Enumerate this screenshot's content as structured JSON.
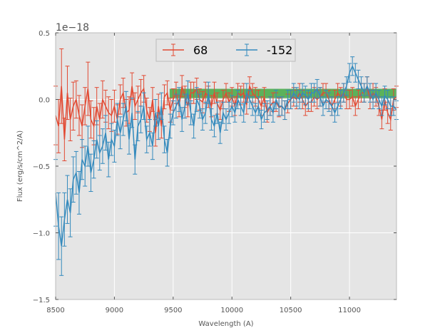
{
  "chart_data": {
    "type": "line",
    "title": "",
    "xlabel": "Wavelength (A)",
    "ylabel": "Flux (erg/s/cm^2/A)",
    "y_offset_label": "1e−18",
    "y_scale_factor": 1e-18,
    "xlim": [
      8500,
      11400
    ],
    "ylim": [
      -1.5,
      0.5
    ],
    "x_ticks": [
      8500,
      9000,
      9500,
      10000,
      10500,
      11000
    ],
    "x_tick_labels": [
      "8500",
      "9000",
      "9500",
      "10000",
      "10500",
      "11000"
    ],
    "y_ticks": [
      -1.5,
      -1.0,
      -0.5,
      0.0,
      0.5
    ],
    "y_tick_labels": [
      "−1.5",
      "−1.0",
      "−0.5",
      "0.0",
      "0.5"
    ],
    "grid": true,
    "legend_position": "top-center",
    "band": {
      "x_start": 9470,
      "x_end": 11400,
      "y_low": 0.01,
      "y_high": 0.08,
      "color": "#2ca02c"
    },
    "series": [
      {
        "name": "68",
        "color": "#e24a33",
        "x": [
          8500,
          8525,
          8550,
          8575,
          8600,
          8625,
          8650,
          8675,
          8700,
          8725,
          8750,
          8775,
          8800,
          8825,
          8850,
          8875,
          8900,
          8925,
          8950,
          8975,
          9000,
          9025,
          9050,
          9075,
          9100,
          9125,
          9150,
          9175,
          9200,
          9225,
          9250,
          9275,
          9300,
          9325,
          9350,
          9375,
          9400,
          9425,
          9450,
          9475,
          9500,
          9525,
          9550,
          9575,
          9600,
          9625,
          9650,
          9675,
          9700,
          9725,
          9750,
          9775,
          9800,
          9825,
          9850,
          9875,
          9900,
          9925,
          9950,
          9975,
          10000,
          10025,
          10050,
          10075,
          10100,
          10125,
          10150,
          10175,
          10200,
          10225,
          10250,
          10275,
          10300,
          10325,
          10350,
          10375,
          10400,
          10425,
          10450,
          10475,
          10500,
          10525,
          10550,
          10575,
          10600,
          10625,
          10650,
          10675,
          10700,
          10725,
          10750,
          10775,
          10800,
          10825,
          10850,
          10875,
          10900,
          10925,
          10950,
          10975,
          11000,
          11025,
          11050,
          11075,
          11100,
          11125,
          11150,
          11175,
          11200,
          11225,
          11250,
          11275,
          11300,
          11325,
          11350,
          11375,
          11400
        ],
        "y": [
          -0.12,
          -0.2,
          0.1,
          -0.3,
          0.05,
          -0.15,
          -0.05,
          0.0,
          -0.12,
          -0.2,
          -0.05,
          0.08,
          -0.15,
          -0.2,
          -0.05,
          -0.15,
          0.0,
          -0.05,
          -0.1,
          -0.12,
          -0.05,
          -0.15,
          0.0,
          0.05,
          -0.1,
          -0.08,
          0.1,
          -0.05,
          0.0,
          0.05,
          0.08,
          -0.08,
          -0.15,
          0.0,
          -0.25,
          -0.05,
          -0.2,
          0.02,
          0.05,
          -0.08,
          0.0,
          0.05,
          -0.05,
          0.1,
          0.02,
          -0.05,
          0.05,
          0.05,
          0.08,
          0.0,
          -0.02,
          0.05,
          0.02,
          -0.05,
          0.05,
          -0.03,
          -0.08,
          0.0,
          0.05,
          -0.02,
          0.02,
          -0.05,
          0.05,
          0.03,
          0.05,
          -0.04,
          0.1,
          0.05,
          0.02,
          0.0,
          -0.05,
          0.02,
          -0.1,
          -0.05,
          -0.02,
          -0.02,
          -0.06,
          -0.05,
          -0.08,
          -0.03,
          0.0,
          0.02,
          0.0,
          0.05,
          0.0,
          -0.05,
          -0.02,
          -0.02,
          0.02,
          0.0,
          0.02,
          0.05,
          0.05,
          0.0,
          -0.05,
          0.0,
          0.05,
          0.02,
          0.05,
          0.0,
          0.0,
          0.02,
          -0.05,
          0.0,
          0.05,
          0.05,
          0.1,
          0.0,
          0.05,
          0.02,
          -0.05,
          -0.15,
          0.0,
          -0.1,
          -0.15,
          0.0,
          0.02
        ],
        "err": [
          0.22,
          0.2,
          0.28,
          0.16,
          0.2,
          0.16,
          0.18,
          0.14,
          0.15,
          0.16,
          0.14,
          0.2,
          0.14,
          0.14,
          0.14,
          0.12,
          0.14,
          0.12,
          0.12,
          0.12,
          0.12,
          0.11,
          0.11,
          0.11,
          0.1,
          0.1,
          0.1,
          0.1,
          0.1,
          0.1,
          0.1,
          0.09,
          0.09,
          0.09,
          0.1,
          0.09,
          0.09,
          0.09,
          0.09,
          0.09,
          0.08,
          0.08,
          0.08,
          0.08,
          0.08,
          0.08,
          0.08,
          0.08,
          0.08,
          0.08,
          0.08,
          0.08,
          0.08,
          0.08,
          0.08,
          0.08,
          0.07,
          0.07,
          0.07,
          0.07,
          0.07,
          0.07,
          0.07,
          0.07,
          0.07,
          0.07,
          0.07,
          0.07,
          0.07,
          0.07,
          0.07,
          0.07,
          0.07,
          0.07,
          0.07,
          0.07,
          0.07,
          0.07,
          0.07,
          0.07,
          0.07,
          0.07,
          0.07,
          0.07,
          0.07,
          0.07,
          0.07,
          0.07,
          0.07,
          0.07,
          0.07,
          0.07,
          0.07,
          0.07,
          0.07,
          0.07,
          0.07,
          0.07,
          0.07,
          0.07,
          0.07,
          0.07,
          0.07,
          0.07,
          0.07,
          0.07,
          0.07,
          0.07,
          0.07,
          0.07,
          0.07,
          0.07,
          0.08,
          0.08,
          0.08,
          0.08,
          0.08
        ]
      },
      {
        "name": "-152",
        "color": "#348abd",
        "x": [
          8500,
          8525,
          8550,
          8575,
          8600,
          8625,
          8650,
          8675,
          8700,
          8725,
          8750,
          8775,
          8800,
          8825,
          8850,
          8875,
          8900,
          8925,
          8950,
          8975,
          9000,
          9025,
          9050,
          9075,
          9100,
          9125,
          9150,
          9175,
          9200,
          9225,
          9250,
          9275,
          9300,
          9325,
          9350,
          9375,
          9400,
          9425,
          9450,
          9475,
          9500,
          9525,
          9550,
          9575,
          9600,
          9625,
          9650,
          9675,
          9700,
          9725,
          9750,
          9775,
          9800,
          9825,
          9850,
          9875,
          9900,
          9925,
          9950,
          9975,
          10000,
          10025,
          10050,
          10075,
          10100,
          10125,
          10150,
          10175,
          10200,
          10225,
          10250,
          10275,
          10300,
          10325,
          10350,
          10375,
          10400,
          10425,
          10450,
          10475,
          10500,
          10525,
          10550,
          10575,
          10600,
          10625,
          10650,
          10675,
          10700,
          10725,
          10750,
          10775,
          10800,
          10825,
          10850,
          10875,
          10900,
          10925,
          10950,
          10975,
          11000,
          11025,
          11050,
          11075,
          11100,
          11125,
          11150,
          11175,
          11200,
          11225,
          11250,
          11275,
          11300,
          11325,
          11350,
          11375,
          11400
        ],
        "y": [
          -0.7,
          -0.95,
          -1.1,
          -0.9,
          -0.75,
          -0.85,
          -0.6,
          -0.55,
          -0.7,
          -0.45,
          -0.5,
          -0.35,
          -0.55,
          -0.45,
          -0.3,
          -0.4,
          -0.35,
          -0.25,
          -0.45,
          -0.3,
          -0.35,
          -0.15,
          -0.25,
          -0.15,
          -0.05,
          -0.3,
          -0.1,
          -0.45,
          -0.2,
          -0.15,
          -0.05,
          -0.3,
          -0.25,
          -0.35,
          -0.1,
          -0.2,
          -0.05,
          -0.3,
          -0.4,
          -0.2,
          -0.1,
          -0.05,
          0.0,
          -0.15,
          -0.05,
          0.05,
          -0.1,
          -0.2,
          0.0,
          -0.05,
          -0.15,
          -0.1,
          0.05,
          -0.15,
          -0.2,
          -0.1,
          -0.25,
          -0.1,
          -0.15,
          -0.1,
          -0.05,
          -0.1,
          0.0,
          -0.05,
          -0.1,
          0.05,
          0.0,
          -0.05,
          -0.1,
          -0.05,
          -0.15,
          -0.1,
          -0.08,
          -0.05,
          -0.1,
          0.0,
          -0.05,
          -0.05,
          -0.08,
          0.0,
          0.0,
          0.05,
          0.02,
          0.0,
          0.05,
          0.03,
          0.0,
          0.05,
          0.05,
          0.08,
          0.02,
          -0.05,
          0.0,
          -0.02,
          -0.05,
          -0.1,
          -0.05,
          0.0,
          0.05,
          0.1,
          0.2,
          0.25,
          0.2,
          0.15,
          0.1,
          0.05,
          0.1,
          0.05,
          0.0,
          0.05,
          0.0,
          -0.05,
          0.03,
          0.0,
          -0.05,
          -0.05,
          -0.08
        ],
        "err": [
          0.25,
          0.25,
          0.22,
          0.2,
          0.18,
          0.18,
          0.17,
          0.16,
          0.16,
          0.15,
          0.15,
          0.15,
          0.14,
          0.14,
          0.14,
          0.13,
          0.13,
          0.13,
          0.13,
          0.12,
          0.12,
          0.12,
          0.12,
          0.12,
          0.11,
          0.11,
          0.11,
          0.11,
          0.11,
          0.1,
          0.1,
          0.1,
          0.1,
          0.1,
          0.1,
          0.1,
          0.1,
          0.1,
          0.1,
          0.09,
          0.09,
          0.09,
          0.09,
          0.09,
          0.09,
          0.09,
          0.09,
          0.09,
          0.09,
          0.09,
          0.08,
          0.08,
          0.08,
          0.08,
          0.08,
          0.08,
          0.08,
          0.08,
          0.08,
          0.08,
          0.08,
          0.07,
          0.07,
          0.07,
          0.07,
          0.07,
          0.07,
          0.07,
          0.07,
          0.07,
          0.07,
          0.07,
          0.07,
          0.07,
          0.07,
          0.07,
          0.07,
          0.07,
          0.07,
          0.07,
          0.07,
          0.07,
          0.07,
          0.07,
          0.07,
          0.07,
          0.07,
          0.07,
          0.07,
          0.07,
          0.07,
          0.07,
          0.07,
          0.07,
          0.07,
          0.07,
          0.07,
          0.07,
          0.07,
          0.07,
          0.07,
          0.07,
          0.07,
          0.07,
          0.07,
          0.07,
          0.07,
          0.07,
          0.07,
          0.07,
          0.07,
          0.07,
          0.07,
          0.07,
          0.07,
          0.07,
          0.07
        ]
      }
    ]
  }
}
